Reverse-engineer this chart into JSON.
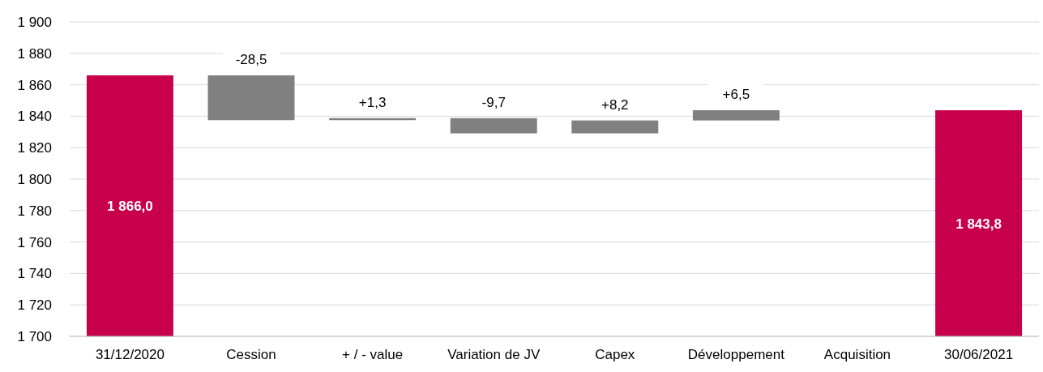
{
  "chart_data": {
    "type": "bar",
    "categories": [
      "31/12/2020",
      "Cession",
      "+ / - value",
      "Variation de JV",
      "Capex",
      "Développement",
      "Acquisition",
      "30/06/2021"
    ],
    "values": [
      1866.0,
      -28.5,
      1.3,
      -9.7,
      8.2,
      6.5,
      null,
      1843.8
    ],
    "base": [
      null,
      1866.0,
      1837.5,
      1838.8,
      1829.1,
      1837.3,
      null,
      null
    ],
    "colors": [
      "#c8004b",
      "#808080",
      "#808080",
      "#808080",
      "#808080",
      "#808080",
      null,
      "#c8004b"
    ],
    "value_labels": [
      "1 866,0",
      "-28,5",
      "+1,3",
      "-9,7",
      "+8,2",
      "+6,5",
      null,
      "1 843,8"
    ],
    "ylim": [
      1700,
      1900
    ],
    "yticks": [
      {
        "value": 1700,
        "label": "1 700"
      },
      {
        "value": 1720,
        "label": "1 720"
      },
      {
        "value": 1740,
        "label": "1 740"
      },
      {
        "value": 1760,
        "label": "1 760"
      },
      {
        "value": 1780,
        "label": "1 780"
      },
      {
        "value": 1800,
        "label": "1 800"
      },
      {
        "value": 1820,
        "label": "1 820"
      },
      {
        "value": 1840,
        "label": "1 840"
      },
      {
        "value": 1860,
        "label": "1 860"
      },
      {
        "value": 1880,
        "label": "1 880"
      },
      {
        "value": 1900,
        "label": "1 900"
      }
    ],
    "grid": "y"
  }
}
